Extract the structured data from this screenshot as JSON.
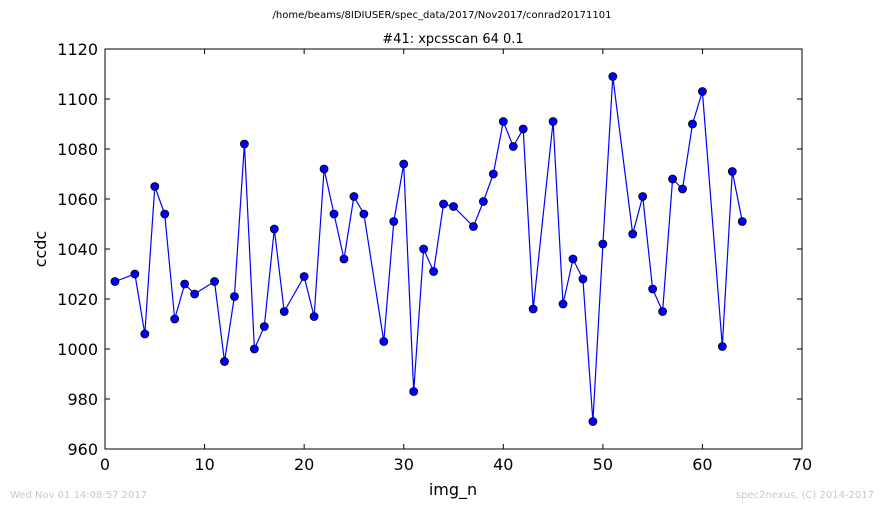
{
  "header": {
    "path": "/home/beams/8IDIUSER/spec_data/2017/Nov2017/conrad20171101"
  },
  "footer": {
    "timestamp": "Wed Nov 01 14:08:57 2017",
    "credit": "spec2nexus, (C) 2014-2017"
  },
  "colors": {
    "series_line": "#0000ff",
    "marker": "#0000ff",
    "axes": "#000000",
    "footer_text": "#c8c8c8"
  },
  "chart_data": {
    "type": "line",
    "title": "#41: xpcsscan 64 0.1",
    "xlabel": "img_n",
    "ylabel": "ccdc",
    "xlim": [
      0,
      70
    ],
    "ylim": [
      960,
      1120
    ],
    "xticks": [
      0,
      10,
      20,
      30,
      40,
      50,
      60,
      70
    ],
    "yticks": [
      960,
      980,
      1000,
      1020,
      1040,
      1060,
      1080,
      1100,
      1120
    ],
    "grid": false,
    "legend": "none",
    "series": [
      {
        "marker": "circle",
        "x": [
          1,
          3,
          4,
          5,
          6,
          7,
          8,
          9,
          11,
          12,
          13,
          14,
          15,
          16,
          17,
          18,
          20,
          21,
          22,
          23,
          24,
          25,
          26,
          28,
          29,
          30,
          31,
          32,
          33,
          34,
          35,
          37,
          38,
          39,
          40,
          41,
          42,
          43,
          45,
          46,
          47,
          48,
          49,
          50,
          51,
          53,
          54,
          55,
          56,
          57,
          58,
          59,
          60,
          62,
          63,
          64
        ],
        "y": [
          1027,
          1030,
          1006,
          1065,
          1054,
          1012,
          1026,
          1022,
          1027,
          995,
          1021,
          1082,
          1000,
          1009,
          1048,
          1015,
          1029,
          1013,
          1072,
          1054,
          1036,
          1061,
          1054,
          1003,
          1051,
          1074,
          983,
          1040,
          1031,
          1058,
          1057,
          1049,
          1059,
          1070,
          1091,
          1081,
          1088,
          1016,
          1091,
          1018,
          1036,
          1028,
          971,
          1042,
          1109,
          1046,
          1061,
          1024,
          1015,
          1068,
          1064,
          1090,
          1103,
          1001,
          1071,
          1051
        ]
      }
    ]
  }
}
